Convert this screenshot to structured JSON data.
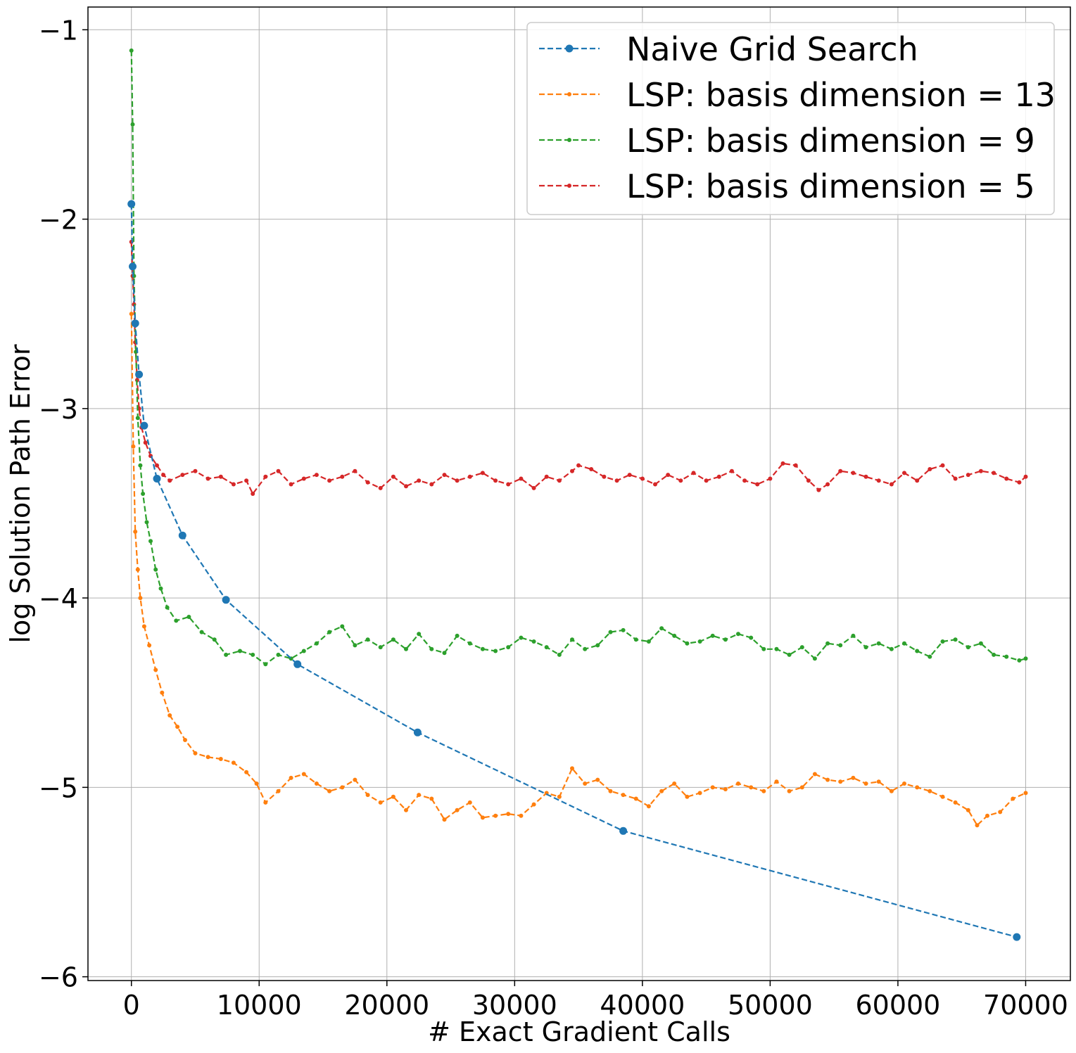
{
  "chart_data": {
    "type": "line",
    "xlabel": "# Exact Gradient Calls",
    "ylabel": "log  Solution Path Error",
    "xlim": [
      -3400,
      73500
    ],
    "ylim": [
      -6.02,
      -0.88
    ],
    "xticks": [
      0,
      10000,
      20000,
      30000,
      40000,
      50000,
      60000,
      70000
    ],
    "yticks": [
      -6,
      -5,
      -4,
      -3,
      -2,
      -1
    ],
    "ytick_labels": [
      "−6",
      "−5",
      "−4",
      "−3",
      "−2",
      "−1"
    ],
    "grid": true,
    "legend_position": "top-right",
    "series": [
      {
        "name": "Naive Grid Search",
        "color": "#1f77b4",
        "marker": "large-dot",
        "x": [
          0,
          100,
          300,
          600,
          1000,
          2000,
          4000,
          7400,
          13000,
          22400,
          38500,
          69300
        ],
        "y": [
          -1.92,
          -2.25,
          -2.55,
          -2.82,
          -3.09,
          -3.37,
          -3.67,
          -4.01,
          -4.35,
          -4.71,
          -5.23,
          -5.79
        ]
      },
      {
        "name": "LSP: basis dimension = 13",
        "color": "#ff7f0e",
        "marker": "small-dot",
        "x": [
          0,
          150,
          300,
          500,
          700,
          1000,
          1400,
          1900,
          2400,
          3000,
          3600,
          4200,
          5000,
          6000,
          7000,
          8000,
          9000,
          9800,
          10500,
          11500,
          12500,
          13500,
          14500,
          15500,
          16500,
          17500,
          18500,
          19500,
          20500,
          21500,
          22500,
          23500,
          24500,
          25500,
          26500,
          27500,
          28500,
          29500,
          30500,
          31500,
          32500,
          33500,
          34500,
          35500,
          36500,
          37500,
          38500,
          39500,
          40500,
          41500,
          42500,
          43500,
          44500,
          45500,
          46500,
          47500,
          48500,
          49500,
          50500,
          51500,
          52500,
          53500,
          54500,
          55500,
          56500,
          57500,
          58500,
          59500,
          60500,
          61500,
          62500,
          63500,
          64500,
          65500,
          66200,
          67000,
          68000,
          69000,
          70000
        ],
        "y": [
          -2.5,
          -3.2,
          -3.65,
          -3.85,
          -4.0,
          -4.15,
          -4.25,
          -4.38,
          -4.5,
          -4.62,
          -4.68,
          -4.75,
          -4.82,
          -4.84,
          -4.85,
          -4.87,
          -4.92,
          -4.98,
          -5.08,
          -5.02,
          -4.95,
          -4.93,
          -4.98,
          -5.02,
          -5.0,
          -4.96,
          -5.04,
          -5.08,
          -5.05,
          -5.12,
          -5.04,
          -5.06,
          -5.17,
          -5.12,
          -5.08,
          -5.16,
          -5.15,
          -5.14,
          -5.15,
          -5.09,
          -5.03,
          -5.05,
          -4.9,
          -4.98,
          -4.96,
          -5.02,
          -5.04,
          -5.06,
          -5.1,
          -5.02,
          -4.98,
          -5.05,
          -5.03,
          -5.0,
          -5.01,
          -4.98,
          -5.0,
          -5.02,
          -4.97,
          -5.02,
          -5.0,
          -4.93,
          -4.96,
          -4.97,
          -4.95,
          -4.98,
          -4.97,
          -5.02,
          -4.98,
          -5.0,
          -5.02,
          -5.05,
          -5.08,
          -5.12,
          -5.2,
          -5.15,
          -5.13,
          -5.06,
          -5.03
        ]
      },
      {
        "name": "LSP: basis dimension = 9",
        "color": "#2ca02c",
        "marker": "small-dot",
        "x": [
          0,
          100,
          200,
          350,
          500,
          700,
          900,
          1200,
          1500,
          1900,
          2300,
          2800,
          3500,
          4500,
          5500,
          6500,
          7400,
          8500,
          9500,
          10500,
          11500,
          12500,
          13500,
          14500,
          15500,
          16500,
          17500,
          18500,
          19500,
          20500,
          21500,
          22500,
          23500,
          24500,
          25500,
          26500,
          27500,
          28500,
          29500,
          30500,
          31500,
          32500,
          33500,
          34500,
          35500,
          36500,
          37500,
          38500,
          39500,
          40500,
          41500,
          42500,
          43500,
          44500,
          45500,
          46500,
          47500,
          48500,
          49500,
          50500,
          51500,
          52500,
          53500,
          54500,
          55500,
          56500,
          57500,
          58500,
          59500,
          60500,
          61500,
          62500,
          63500,
          64500,
          65500,
          66500,
          67500,
          68500,
          69500,
          70000
        ],
        "y": [
          -1.11,
          -1.5,
          -2.3,
          -2.7,
          -3.05,
          -3.3,
          -3.45,
          -3.6,
          -3.7,
          -3.85,
          -3.95,
          -4.05,
          -4.12,
          -4.1,
          -4.18,
          -4.22,
          -4.3,
          -4.28,
          -4.3,
          -4.35,
          -4.3,
          -4.32,
          -4.28,
          -4.24,
          -4.18,
          -4.15,
          -4.25,
          -4.22,
          -4.26,
          -4.22,
          -4.27,
          -4.19,
          -4.27,
          -4.29,
          -4.2,
          -4.24,
          -4.27,
          -4.28,
          -4.26,
          -4.21,
          -4.23,
          -4.26,
          -4.3,
          -4.22,
          -4.27,
          -4.25,
          -4.18,
          -4.17,
          -4.22,
          -4.23,
          -4.16,
          -4.2,
          -4.24,
          -4.23,
          -4.2,
          -4.22,
          -4.19,
          -4.21,
          -4.27,
          -4.27,
          -4.3,
          -4.26,
          -4.32,
          -4.24,
          -4.25,
          -4.2,
          -4.26,
          -4.24,
          -4.27,
          -4.24,
          -4.28,
          -4.31,
          -4.23,
          -4.22,
          -4.26,
          -4.24,
          -4.3,
          -4.31,
          -4.33,
          -4.32
        ]
      },
      {
        "name": "LSP: basis dimension = 5",
        "color": "#d62728",
        "marker": "small-dot",
        "x": [
          0,
          100,
          200,
          300,
          450,
          600,
          800,
          1100,
          1500,
          2000,
          2500,
          3000,
          4000,
          5000,
          6000,
          7000,
          8000,
          9000,
          9500,
          10500,
          11500,
          12500,
          13500,
          14500,
          15500,
          16500,
          17500,
          18500,
          19500,
          20500,
          21500,
          22500,
          23500,
          24500,
          25500,
          26500,
          27500,
          28500,
          29500,
          30500,
          31500,
          32500,
          33500,
          34500,
          35000,
          36000,
          37000,
          38000,
          39000,
          40000,
          41000,
          42000,
          43000,
          44000,
          45000,
          46000,
          47000,
          48000,
          49000,
          50000,
          51000,
          52000,
          53000,
          53800,
          54500,
          55500,
          56500,
          57500,
          58500,
          59500,
          60500,
          61500,
          62500,
          63500,
          64500,
          65500,
          66500,
          67500,
          68500,
          69500,
          70000
        ],
        "y": [
          -2.12,
          -2.3,
          -2.45,
          -2.65,
          -2.85,
          -3.0,
          -3.1,
          -3.18,
          -3.25,
          -3.3,
          -3.35,
          -3.38,
          -3.35,
          -3.33,
          -3.37,
          -3.36,
          -3.4,
          -3.38,
          -3.45,
          -3.36,
          -3.33,
          -3.4,
          -3.37,
          -3.35,
          -3.38,
          -3.36,
          -3.33,
          -3.39,
          -3.42,
          -3.36,
          -3.41,
          -3.38,
          -3.4,
          -3.35,
          -3.38,
          -3.36,
          -3.34,
          -3.38,
          -3.4,
          -3.37,
          -3.42,
          -3.36,
          -3.38,
          -3.33,
          -3.3,
          -3.32,
          -3.36,
          -3.38,
          -3.35,
          -3.37,
          -3.4,
          -3.35,
          -3.38,
          -3.34,
          -3.38,
          -3.36,
          -3.33,
          -3.38,
          -3.4,
          -3.37,
          -3.29,
          -3.3,
          -3.38,
          -3.43,
          -3.4,
          -3.33,
          -3.34,
          -3.36,
          -3.38,
          -3.4,
          -3.34,
          -3.38,
          -3.32,
          -3.3,
          -3.37,
          -3.35,
          -3.33,
          -3.34,
          -3.37,
          -3.39,
          -3.36
        ]
      }
    ]
  }
}
